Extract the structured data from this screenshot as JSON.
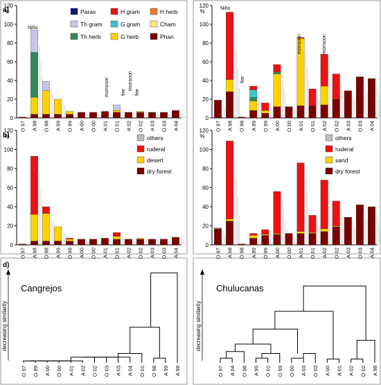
{
  "figure": {
    "period_labels": [
      "O 97",
      "A 98",
      "O 98",
      "A 99",
      "O 99",
      "A 00",
      "O 00",
      "A 01",
      "O 01",
      "A 02",
      "O 02",
      "A 03",
      "O 03",
      "A 04"
    ],
    "y_unit": "%",
    "y_ticks": [
      "0",
      "20",
      "40",
      "60",
      "80",
      "100",
      "120"
    ],
    "panel_letters": [
      "a)",
      "b)",
      "",
      "d)"
    ],
    "annotations": {
      "nino": "Niño",
      "fire": "fire",
      "monsoon": "monsoon"
    },
    "legend_a": [
      {
        "label": "Paras",
        "color": "#0b1a7a"
      },
      {
        "label": "H gram",
        "color": "#ee1111"
      },
      {
        "label": "H herb",
        "color": "#f07a28"
      },
      {
        "label": "Th gram",
        "color": "#c7c6ea"
      },
      {
        "label": "G gram",
        "color": "#3fc4cc"
      },
      {
        "label": "Cham",
        "color": "#fbe08a"
      },
      {
        "label": "Th herb",
        "color": "#2f8a57"
      },
      {
        "label": "G herb",
        "color": "#ffd200"
      },
      {
        "label": "Phan",
        "color": "#7a0000"
      }
    ],
    "legend_b_left": [
      {
        "label": "others",
        "color": "#bdbdbd"
      },
      {
        "label": "ruderal",
        "color": "#ee1111"
      },
      {
        "label": "desert",
        "color": "#ffd200"
      },
      {
        "label": "dry forest",
        "color": "#7a0000"
      }
    ],
    "legend_b_right": [
      {
        "label": "others",
        "color": "#bdbdbd"
      },
      {
        "label": "ruderal",
        "color": "#ee1111"
      },
      {
        "label": "sand",
        "color": "#ffd200"
      },
      {
        "label": "dry forest",
        "color": "#7a0000"
      }
    ],
    "dendrogram": {
      "ylabel": "decreasing similarity",
      "left_title": "Cangrejos",
      "right_title": "Chulucanas",
      "left_leaves": [
        "O 97",
        "O 99",
        "A 00",
        "O 00",
        "A 01",
        "A 02",
        "O 02",
        "O 03",
        "A 03",
        "A 04",
        "O 01",
        "O 98",
        "A 99",
        "A 98"
      ],
      "right_leaves": [
        "O 97",
        "A 04",
        "O 98",
        "A 99",
        "O 01",
        "O 99",
        "O 00",
        "A 03",
        "O 03",
        "A 00",
        "A 01",
        "A 02",
        "O 02",
        "A 98"
      ]
    }
  },
  "chart_data": [
    {
      "type": "bar",
      "panel": "a) Cangrejos",
      "categories": [
        "O 97",
        "A 98",
        "O 98",
        "A 99",
        "O 99",
        "A 00",
        "O 00",
        "A 01",
        "O 01",
        "A 02",
        "O 02",
        "A 03",
        "O 03",
        "A 04"
      ],
      "series": [
        {
          "name": "Phan",
          "values": [
            1,
            4,
            4,
            4,
            4,
            6,
            6,
            7,
            6,
            6,
            6,
            6,
            6,
            8
          ]
        },
        {
          "name": "G herb",
          "values": [
            0,
            18,
            25,
            16,
            3,
            0,
            0,
            0,
            2,
            0,
            1,
            0,
            0,
            0
          ]
        },
        {
          "name": "Th herb",
          "values": [
            0,
            48,
            0,
            0,
            0,
            0,
            0,
            0,
            0,
            0,
            0,
            0,
            0,
            0
          ]
        },
        {
          "name": "Th gram",
          "values": [
            0,
            24,
            10,
            0,
            0,
            0,
            0,
            0,
            6,
            0,
            0,
            0,
            0,
            0
          ]
        },
        {
          "name": "H gram",
          "values": [
            0,
            0,
            0,
            0,
            0,
            0,
            0,
            0,
            0,
            0,
            0,
            0,
            0,
            0
          ]
        },
        {
          "name": "others",
          "values": [
            0,
            0,
            0,
            0,
            0,
            0,
            0,
            0,
            0,
            0,
            0,
            0,
            0,
            0
          ]
        }
      ],
      "ylim": [
        0,
        120
      ]
    },
    {
      "type": "bar",
      "panel": "a) Chulucanas",
      "categories": [
        "O 97",
        "A 98",
        "O 98",
        "A 99",
        "O 99",
        "A 00",
        "O 00",
        "A 01",
        "O 01",
        "A 02",
        "O 02",
        "A 03",
        "O 03",
        "A 04"
      ],
      "series": [
        {
          "name": "Phan",
          "values": [
            19,
            28,
            1,
            8,
            5,
            12,
            12,
            13,
            13,
            14,
            20,
            29,
            44,
            42
          ]
        },
        {
          "name": "G herb",
          "values": [
            0,
            13,
            0,
            10,
            3,
            35,
            0,
            72,
            0,
            20,
            0,
            0,
            0,
            0
          ]
        },
        {
          "name": "Th herb",
          "values": [
            0,
            0,
            0,
            4,
            0,
            2,
            0,
            0,
            0,
            0,
            0,
            0,
            0,
            0
          ]
        },
        {
          "name": "G gram",
          "values": [
            0,
            0,
            0,
            8,
            0,
            0,
            0,
            0,
            0,
            0,
            0,
            0,
            0,
            0
          ]
        },
        {
          "name": "H gram",
          "values": [
            0,
            72,
            0,
            4,
            8,
            8,
            0,
            1,
            18,
            34,
            27,
            0,
            0,
            0
          ]
        }
      ],
      "ylim": [
        0,
        120
      ]
    },
    {
      "type": "bar",
      "panel": "b) Cangrejos",
      "categories": [
        "O 97",
        "A 98",
        "O 98",
        "A 99",
        "O 99",
        "A 00",
        "O 00",
        "A 01",
        "O 01",
        "A 02",
        "O 02",
        "A 03",
        "O 03",
        "A 04"
      ],
      "series": [
        {
          "name": "dry forest",
          "values": [
            1,
            4,
            4,
            4,
            4,
            6,
            6,
            7,
            6,
            6,
            6,
            6,
            6,
            8
          ]
        },
        {
          "name": "desert",
          "values": [
            0,
            28,
            29,
            15,
            2,
            0,
            0,
            0,
            3,
            0,
            1,
            0,
            0,
            0
          ]
        },
        {
          "name": "ruderal",
          "values": [
            0,
            61,
            7,
            0,
            1,
            0,
            0,
            0,
            4,
            0,
            0,
            0,
            0,
            0
          ]
        },
        {
          "name": "others",
          "values": [
            0,
            0,
            0,
            0,
            0,
            0,
            0,
            0,
            0,
            0,
            0,
            0,
            0,
            0
          ]
        }
      ],
      "ylim": [
        0,
        120
      ]
    },
    {
      "type": "bar",
      "panel": "b) Chulucanas",
      "categories": [
        "O 97",
        "A 98",
        "O 98",
        "A 99",
        "O 99",
        "A 00",
        "O 00",
        "A 01",
        "O 01",
        "A 02",
        "O 02",
        "A 03",
        "O 03",
        "A 04"
      ],
      "series": [
        {
          "name": "dry forest",
          "values": [
            17,
            25,
            1,
            7,
            10,
            11,
            12,
            12,
            12,
            14,
            19,
            29,
            42,
            40
          ]
        },
        {
          "name": "sand",
          "values": [
            0,
            2,
            0,
            3,
            1,
            1,
            0,
            2,
            1,
            3,
            1,
            0,
            0,
            0
          ]
        },
        {
          "name": "ruderal",
          "values": [
            0,
            82,
            0,
            2,
            5,
            44,
            0,
            72,
            18,
            51,
            26,
            0,
            0,
            0
          ]
        },
        {
          "name": "others",
          "values": [
            1,
            0,
            0,
            0,
            0,
            0,
            0,
            0,
            0,
            0,
            0,
            0,
            0,
            0
          ]
        }
      ],
      "ylim": [
        0,
        120
      ]
    }
  ]
}
